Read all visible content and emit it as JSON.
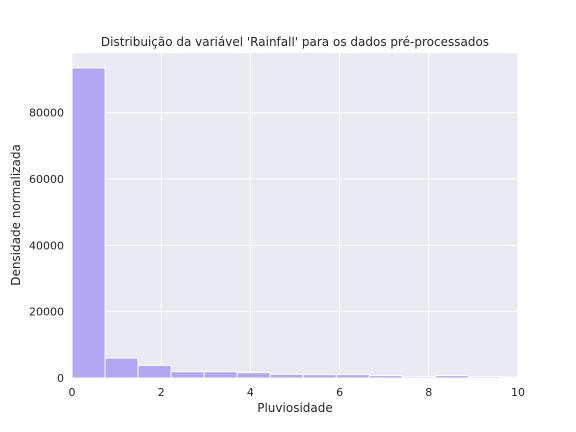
{
  "chart_data": {
    "type": "bar",
    "title": "Distribuição da variável 'Rainfall' para os dados pré-processados",
    "xlabel": "Pluviosidade",
    "ylabel": "Densidade normalizada",
    "xlim": [
      0,
      10
    ],
    "ylim": [
      0,
      98000
    ],
    "xticks": [
      0,
      2,
      4,
      6,
      8,
      10
    ],
    "xtick_labels": [
      "0",
      "2",
      "4",
      "6",
      "8",
      "10"
    ],
    "yticks": [
      0,
      20000,
      40000,
      60000,
      80000
    ],
    "ytick_labels": [
      "0",
      "20000",
      "40000",
      "60000",
      "80000"
    ],
    "bin_edges": [
      0,
      0.741,
      1.481,
      2.222,
      2.963,
      3.704,
      4.444,
      5.185,
      5.926,
      6.667,
      7.407,
      8.148,
      8.889,
      9.63,
      10.37
    ],
    "values": [
      93500,
      6000,
      3800,
      1900,
      1900,
      1600,
      1100,
      1000,
      1000,
      700,
      400,
      700,
      400,
      300
    ],
    "bar_color": "#b3a6f2",
    "bar_edge_color": "#ffffff",
    "background_color": "#eaeaf2",
    "grid": true,
    "grid_color": "#ffffff",
    "legend": "none"
  }
}
